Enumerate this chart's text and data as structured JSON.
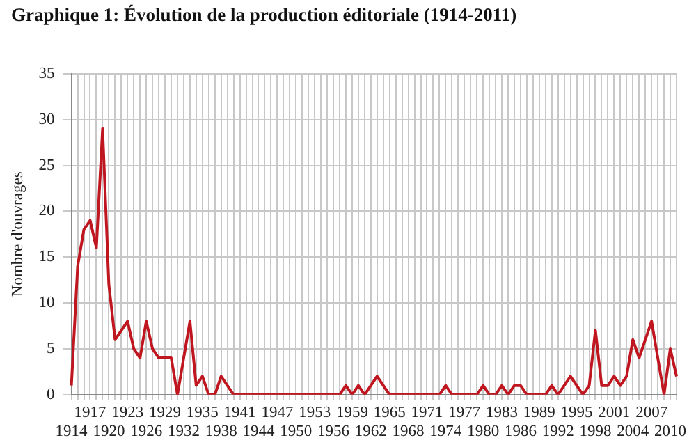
{
  "chart_data": {
    "type": "line",
    "title": "Graphique 1: Évolution de la production éditoriale (1914-2011)",
    "ylabel": "Nombre d'ouvrages",
    "categories": [
      "1914",
      null,
      null,
      "1917",
      null,
      null,
      "1920",
      null,
      null,
      "1923",
      null,
      null,
      "1926",
      null,
      null,
      "1929",
      null,
      null,
      "1932",
      null,
      null,
      "1935",
      null,
      null,
      "1938",
      null,
      null,
      "1941",
      null,
      null,
      "1944",
      null,
      null,
      "1947",
      null,
      null,
      "1950",
      null,
      null,
      "1953",
      null,
      null,
      "1956",
      null,
      null,
      "1959",
      null,
      null,
      "1962",
      null,
      null,
      "1965",
      null,
      null,
      "1968",
      null,
      null,
      "1971",
      null,
      null,
      "1974",
      null,
      null,
      "1977",
      null,
      null,
      "1980",
      null,
      null,
      "1983",
      null,
      null,
      "1986",
      null,
      null,
      "1989",
      null,
      null,
      "1992",
      null,
      null,
      "1995",
      null,
      null,
      "1998",
      null,
      null,
      "2001",
      null,
      null,
      "2004",
      null,
      null,
      "2007",
      null,
      null,
      "2010",
      null
    ],
    "series": [
      {
        "color": "#c0161f",
        "values": [
          1,
          14,
          18,
          19,
          16,
          29,
          12,
          6,
          7,
          8,
          5,
          4,
          8,
          5,
          4,
          4,
          4,
          0,
          4,
          8,
          1,
          2,
          0,
          0,
          2,
          1,
          0,
          0,
          0,
          0,
          0,
          0,
          0,
          0,
          0,
          0,
          0,
          0,
          0,
          0,
          0,
          0,
          0,
          0,
          1,
          0,
          1,
          0,
          1,
          2,
          1,
          0,
          0,
          0,
          0,
          0,
          0,
          0,
          0,
          0,
          1,
          0,
          0,
          0,
          0,
          0,
          1,
          0,
          0,
          1,
          0,
          1,
          1,
          0,
          0,
          0,
          0,
          1,
          0,
          1,
          2,
          1,
          0,
          1,
          7,
          1,
          1,
          2,
          1,
          2,
          6,
          4,
          6,
          8,
          4,
          0,
          5,
          2
        ]
      }
    ],
    "ylim": [
      0,
      35
    ],
    "yticks": [
      0,
      5,
      10,
      15,
      20,
      25,
      30,
      35
    ],
    "grid": true,
    "marker": "none",
    "line_style": "solid"
  }
}
